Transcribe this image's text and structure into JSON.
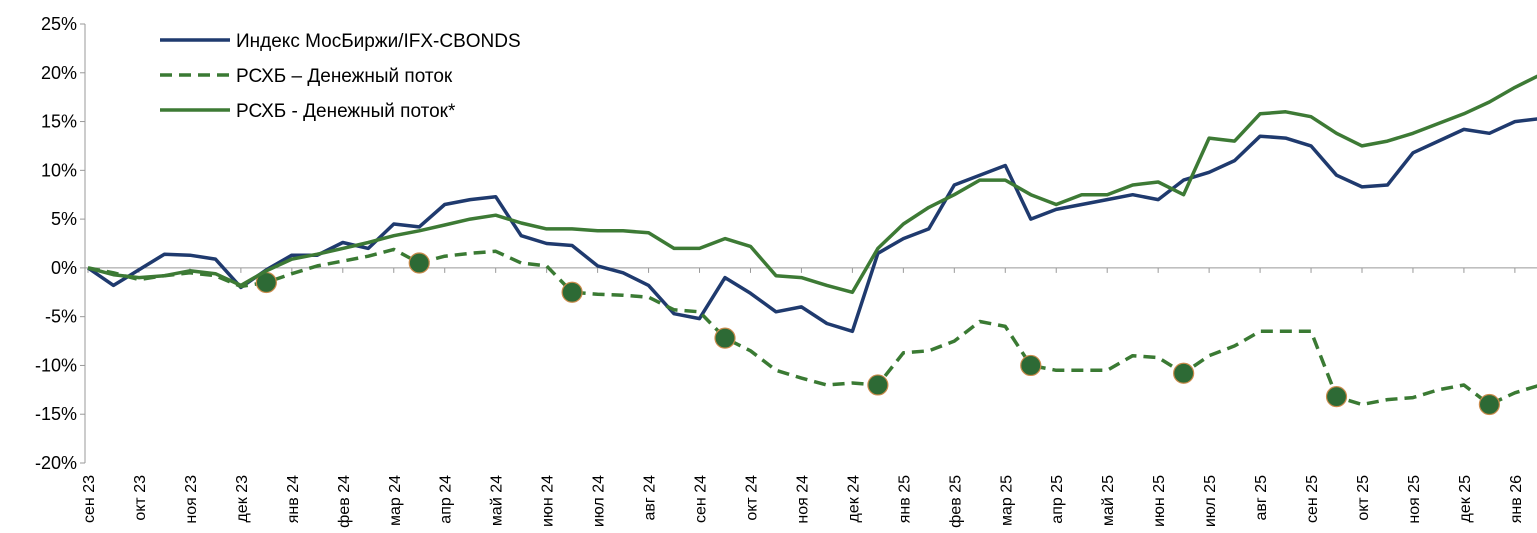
{
  "chart_data": {
    "type": "line",
    "categories": [
      "сен 23",
      null,
      "окт 23",
      null,
      "ноя 23",
      null,
      "дек 23",
      null,
      "янв 24",
      null,
      "фев 24",
      null,
      "мар 24",
      null,
      "апр 24",
      null,
      "май 24",
      null,
      "июн 24",
      null,
      "июл 24",
      null,
      "авг 24",
      null,
      "сен 24",
      null,
      "окт 24",
      null,
      "ноя 24",
      null,
      "дек 24",
      null,
      "янв 25",
      null,
      "фев 25",
      null,
      "мар 25",
      null,
      "апр 25",
      null,
      "май 25",
      null,
      "июн 25",
      null,
      "июл 25",
      null,
      "авг 25",
      null,
      "сен 25",
      null,
      "окт 25",
      null,
      "ноя 25",
      null,
      "дек 25",
      null,
      "янв 26",
      null
    ],
    "series": [
      {
        "name": "Индекс МосБиржи/IFX-CBONDS",
        "color": "#1f3a6e",
        "dashed": false,
        "values": [
          0,
          -1.8,
          -0.2,
          1.4,
          1.3,
          0.9,
          -2.0,
          -0.2,
          1.3,
          1.3,
          2.6,
          2.0,
          4.5,
          4.2,
          6.5,
          7.0,
          7.3,
          3.3,
          2.5,
          2.3,
          0.2,
          -0.5,
          -1.8,
          -4.7,
          -5.2,
          -1.0,
          -2.6,
          -4.5,
          -4.0,
          -5.7,
          -6.5,
          1.5,
          3.0,
          4.0,
          8.5,
          9.5,
          10.5,
          5.0,
          6.0,
          6.5,
          7.0,
          7.5,
          7.0,
          9.0,
          9.8,
          11.0,
          13.5,
          13.3,
          12.5,
          9.5,
          8.3,
          8.5,
          11.8,
          13.0,
          14.2,
          13.8,
          15.0,
          15.3
        ]
      },
      {
        "name": "РСХБ – Денежный поток",
        "color": "#3a7a33",
        "dashed": true,
        "values": [
          0,
          -0.5,
          -1.2,
          -0.8,
          -0.5,
          -0.8,
          -1.9,
          -1.5,
          -0.6,
          0.2,
          0.7,
          1.2,
          1.9,
          0.5,
          1.2,
          1.5,
          1.7,
          0.5,
          0.2,
          -2.5,
          -2.7,
          -2.8,
          -3.0,
          -4.3,
          -4.5,
          -7.2,
          -8.5,
          -10.5,
          -11.3,
          -12.0,
          -11.8,
          -12.0,
          -8.7,
          -8.5,
          -7.5,
          -5.5,
          -6.0,
          -10.0,
          -10.5,
          -10.5,
          -10.5,
          -9.0,
          -9.2,
          -10.8,
          -9.0,
          -8.0,
          -6.5,
          -6.5,
          -6.5,
          -13.2,
          -14.0,
          -13.5,
          -13.3,
          -12.5,
          -12.0,
          -14.0,
          -12.8,
          -12.0
        ],
        "markers": [
          null,
          null,
          null,
          null,
          null,
          null,
          null,
          -1.5,
          null,
          null,
          null,
          null,
          null,
          0.5,
          null,
          null,
          null,
          null,
          null,
          -2.5,
          null,
          null,
          null,
          null,
          null,
          -7.2,
          null,
          null,
          null,
          null,
          null,
          -12.0,
          null,
          null,
          null,
          null,
          null,
          -10.0,
          null,
          null,
          null,
          null,
          null,
          -10.8,
          null,
          null,
          null,
          null,
          null,
          -13.2,
          null,
          null,
          null,
          null,
          null,
          -14.0,
          null,
          null
        ],
        "marker_color": "#2d6a35"
      },
      {
        "name": "РСХБ - Денежный поток*",
        "color": "#3d7a35",
        "dashed": false,
        "values": [
          0,
          -0.7,
          -1.0,
          -0.8,
          -0.3,
          -0.6,
          -1.8,
          -0.3,
          0.9,
          1.4,
          2.0,
          2.6,
          3.3,
          3.8,
          4.4,
          5.0,
          5.4,
          4.6,
          4.0,
          4.0,
          3.8,
          3.8,
          3.6,
          2.0,
          2.0,
          3.0,
          2.2,
          -0.8,
          -1.0,
          -1.8,
          -2.5,
          2.0,
          4.5,
          6.2,
          7.5,
          9.0,
          9.0,
          7.5,
          6.5,
          7.5,
          7.5,
          8.5,
          8.8,
          7.5,
          13.3,
          13.0,
          15.8,
          16.0,
          15.5,
          13.8,
          12.5,
          13.0,
          13.8,
          14.8,
          15.8,
          17.0,
          18.5,
          19.8
        ]
      }
    ],
    "ylim": [
      -20,
      25
    ],
    "yticks": [
      {
        "value": -20,
        "label": "-20%"
      },
      {
        "value": -15,
        "label": "-15%"
      },
      {
        "value": -10,
        "label": "-10%"
      },
      {
        "value": -5,
        "label": "-5%"
      },
      {
        "value": 0,
        "label": "0%"
      },
      {
        "value": 5,
        "label": "5%"
      },
      {
        "value": 10,
        "label": "10%"
      },
      {
        "value": 15,
        "label": "15%"
      },
      {
        "value": 20,
        "label": "20%"
      },
      {
        "value": 25,
        "label": "25%"
      }
    ],
    "legend": "top-left",
    "grid": false
  }
}
